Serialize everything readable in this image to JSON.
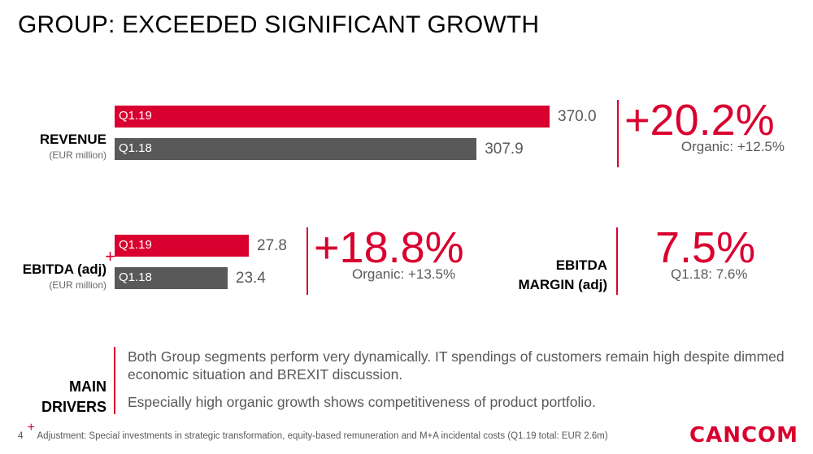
{
  "title": "GROUP: EXCEEDED SIGNIFICANT GROWTH",
  "colors": {
    "accent": "#d9002f",
    "prior": "#595959",
    "text_grey": "#595959"
  },
  "chart_data": [
    {
      "type": "bar",
      "orientation": "horizontal",
      "title": "REVENUE",
      "unit": "(EUR million)",
      "categories": [
        "Q1.19",
        "Q1.18"
      ],
      "values": [
        370.0,
        307.9
      ],
      "value_labels": [
        "370.0",
        "307.9"
      ],
      "colors": [
        "#d9002f",
        "#595959"
      ],
      "growth": "+20.2%",
      "organic": "Organic: +12.5%"
    },
    {
      "type": "bar",
      "orientation": "horizontal",
      "title": "EBITDA (adj)",
      "footnote_marker": "+",
      "unit": "(EUR million)",
      "categories": [
        "Q1.19",
        "Q1.18"
      ],
      "values": [
        27.8,
        23.4
      ],
      "value_labels": [
        "27.8",
        "23.4"
      ],
      "colors": [
        "#d9002f",
        "#595959"
      ],
      "growth": "+18.8%",
      "organic": "Organic: +13.5%"
    }
  ],
  "margin": {
    "label_line1": "EBITDA",
    "label_line2": "MARGIN (adj)",
    "value": "7.5%",
    "prior": "Q1.18: 7.6%"
  },
  "drivers": {
    "label_line1": "MAIN",
    "label_line2": "DRIVERS",
    "items": [
      "Both Group segments perform very dynamically. IT spendings of customers remain high despite dimmed economic situation and BREXIT discussion.",
      "Especially high organic growth shows competitiveness of product portfolio."
    ]
  },
  "footer": {
    "page_number": "4",
    "marker": "+",
    "text": "Adjustment: Special investments in strategic transformation, equity-based remuneration and M+A incidental costs (Q1.19 total: EUR 2.6m)"
  },
  "logo": "CANCOM"
}
